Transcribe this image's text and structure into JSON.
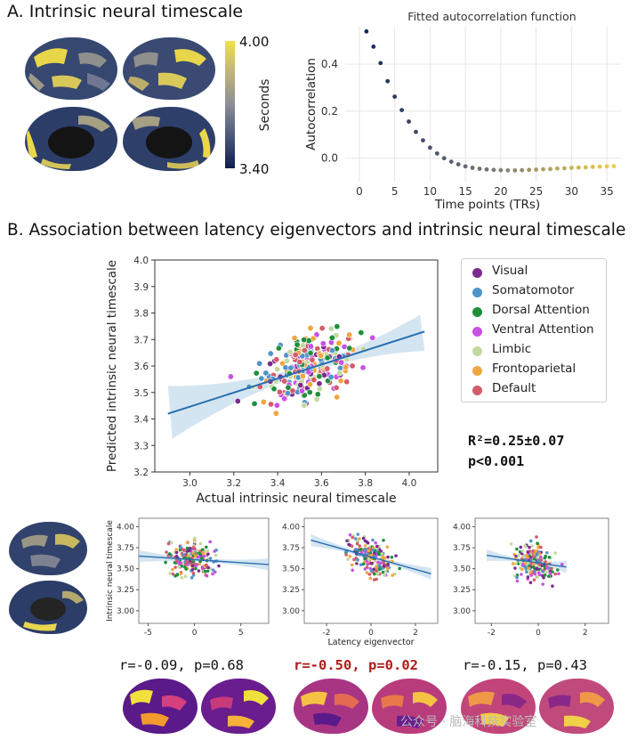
{
  "panel_a_title": "A. Intrinsic neural timescale",
  "panel_b_title": "B. Association between latency eigenvectors and intrinsic neural timescale",
  "colorbar": {
    "max_label": "4.00",
    "min_label": "3.40",
    "label": "Seconds",
    "max": 4.0,
    "min": 3.4,
    "colors": [
      "#0e1f4d",
      "#4a577a",
      "#8a8d95",
      "#c0b37a",
      "#f2e04a"
    ]
  },
  "acf_panel": {
    "title": "Fitted autocorrelation function",
    "xlabel": "Time points (TRs)",
    "ylabel": "Autocorrelation"
  },
  "main_scatter": {
    "xlabel": "Actual intrinsic neural timescale",
    "ylabel": "Predicted intrinsic neural timescale"
  },
  "legend": [
    {
      "label": "Visual",
      "color": "#7b2a8f"
    },
    {
      "label": "Somatomotor",
      "color": "#4f94c9"
    },
    {
      "label": "Dorsal Attention",
      "color": "#1f8f3c"
    },
    {
      "label": "Ventral Attention",
      "color": "#c951e3"
    },
    {
      "label": "Limbic",
      "color": "#c2d9a0"
    },
    {
      "label": "Frontoparietal",
      "color": "#f0a640"
    },
    {
      "label": "Default",
      "color": "#d35c6a"
    }
  ],
  "stats": {
    "r2": "R²=0.25±0.07",
    "p": "p<0.001"
  },
  "small_panels": {
    "ylabel": "Intrinsic neural timescale",
    "xlabel": "Latency eigenvector"
  },
  "correlations": [
    {
      "text": "r=-0.09, p=0.68",
      "color": "#111111"
    },
    {
      "text": "r=-0.50, p=0.02",
      "color": "#b01c1c"
    },
    {
      "text": "r=-0.15, p=0.43",
      "color": "#111111"
    }
  ],
  "watermark": "公众号 · 脑海科技实验室",
  "chart_data": [
    {
      "type": "scatter",
      "title": "Fitted autocorrelation function",
      "xlabel": "Time points (TRs)",
      "ylabel": "Autocorrelation",
      "xlim": [
        -2,
        37
      ],
      "ylim": [
        -0.1,
        0.56
      ],
      "xticks": [
        0,
        5,
        10,
        15,
        20,
        25,
        30,
        35
      ],
      "yticks": [
        0.0,
        0.2,
        0.4
      ],
      "x": [
        1,
        2,
        3,
        4,
        5,
        6,
        7,
        8,
        9,
        10,
        11,
        12,
        13,
        14,
        15,
        16,
        17,
        18,
        19,
        20,
        21,
        22,
        23,
        24,
        25,
        26,
        27,
        28,
        29,
        30,
        31,
        32,
        33,
        34,
        35,
        36
      ],
      "y": [
        0.54,
        0.475,
        0.405,
        0.328,
        0.262,
        0.205,
        0.156,
        0.112,
        0.076,
        0.045,
        0.02,
        0.0,
        -0.015,
        -0.026,
        -0.035,
        -0.041,
        -0.045,
        -0.048,
        -0.05,
        -0.051,
        -0.052,
        -0.052,
        -0.051,
        -0.05,
        -0.049,
        -0.047,
        -0.046,
        -0.044,
        -0.043,
        -0.041,
        -0.04,
        -0.039,
        -0.037,
        -0.036,
        -0.035,
        -0.034
      ]
    },
    {
      "type": "scatter",
      "title": "",
      "xlabel": "Actual intrinsic neural timescale",
      "ylabel": "Predicted intrinsic neural timescale",
      "xlim": [
        2.84,
        4.13
      ],
      "ylim": [
        3.2,
        4.0
      ],
      "xticks": [
        3.0,
        3.2,
        3.4,
        3.6,
        3.8,
        4.0
      ],
      "yticks": [
        3.2,
        3.3,
        3.4,
        3.5,
        3.6,
        3.7,
        3.8,
        3.9,
        4.0
      ],
      "fit": {
        "x": [
          2.9,
          4.07
        ],
        "y": [
          3.42,
          3.73
        ]
      },
      "n_points": 250
    },
    {
      "type": "scatter",
      "xlim": [
        -6,
        8
      ],
      "ylim": [
        2.85,
        4.1
      ],
      "xticks": [
        -5,
        0,
        5
      ],
      "yticks": [
        3.0,
        3.25,
        3.5,
        3.75,
        4.0
      ],
      "ylabel": "Intrinsic neural timescale",
      "fit": {
        "x": [
          -6,
          8
        ],
        "y": [
          3.65,
          3.55
        ]
      },
      "n_points": 190
    },
    {
      "type": "scatter",
      "xlim": [
        -3,
        3
      ],
      "ylim": [
        2.85,
        4.1
      ],
      "xticks": [
        -2,
        0,
        2
      ],
      "yticks": [
        3.0,
        3.25,
        3.5,
        3.75,
        4.0
      ],
      "xlabel": "Latency eigenvector",
      "fit": {
        "x": [
          -2.7,
          2.7
        ],
        "y": [
          3.84,
          3.44
        ]
      },
      "n_points": 190
    },
    {
      "type": "scatter",
      "xlim": [
        -2.7,
        3
      ],
      "ylim": [
        2.85,
        4.1
      ],
      "xticks": [
        -2,
        0,
        2
      ],
      "yticks": [
        3.0,
        3.25,
        3.5,
        3.75,
        4.0
      ],
      "fit": {
        "x": [
          -2.2,
          1.2
        ],
        "y": [
          3.66,
          3.52
        ]
      },
      "n_points": 190
    }
  ]
}
